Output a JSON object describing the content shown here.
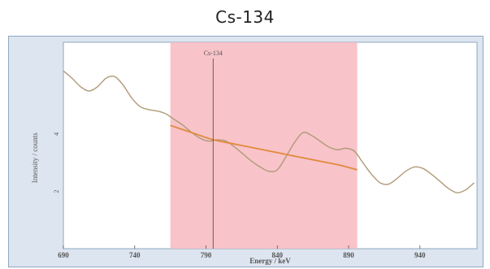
{
  "page": {
    "title": "Cs-134"
  },
  "colors": {
    "panel_background": "#dde5f0",
    "plot_background": "#ffffff",
    "frame": "#8fa8c2",
    "spectrum_line": "#b09a78",
    "background_line": "#e08a3c",
    "roi_fill": "#f7bcc3",
    "marker_line": "#555555",
    "axis_text": "#555555"
  },
  "chart_data": {
    "type": "line",
    "title": "",
    "xlabel": "Energy / keV",
    "ylabel": "Intensity / counts",
    "xlim": [
      690,
      980
    ],
    "ylim": [
      0,
      7.2
    ],
    "x_ticks": [
      690,
      740,
      790,
      840,
      890,
      940
    ],
    "y_ticks": [
      2,
      4
    ],
    "grid": false,
    "legend": "none",
    "series": [
      {
        "role": "spectrum",
        "x": [
          690,
          696,
          702,
          708,
          714,
          720,
          726,
          732,
          738,
          744,
          750,
          756,
          762,
          768,
          774,
          780,
          786,
          792,
          798,
          804,
          810,
          816,
          822,
          828,
          834,
          840,
          846,
          852,
          858,
          864,
          870,
          876,
          882,
          888,
          894,
          900,
          906,
          912,
          918,
          924,
          930,
          936,
          942,
          948,
          954,
          960,
          966,
          972,
          978
        ],
        "y": [
          6.2,
          5.95,
          5.65,
          5.5,
          5.65,
          5.95,
          6.0,
          5.7,
          5.25,
          4.95,
          4.85,
          4.8,
          4.7,
          4.5,
          4.3,
          4.05,
          3.85,
          3.75,
          3.8,
          3.75,
          3.55,
          3.3,
          3.05,
          2.85,
          2.7,
          2.75,
          3.2,
          3.7,
          4.05,
          3.95,
          3.75,
          3.55,
          3.45,
          3.5,
          3.4,
          3.0,
          2.6,
          2.3,
          2.25,
          2.45,
          2.7,
          2.85,
          2.8,
          2.6,
          2.35,
          2.1,
          1.95,
          2.05,
          2.3
        ]
      },
      {
        "role": "background",
        "x": [
          765,
          780,
          795,
          810,
          825,
          840,
          855,
          870,
          885,
          896
        ],
        "y": [
          4.3,
          4.05,
          3.8,
          3.65,
          3.5,
          3.35,
          3.2,
          3.05,
          2.9,
          2.75
        ]
      }
    ],
    "roi": {
      "x_start": 765,
      "x_end": 896
    },
    "marker": {
      "x": 795,
      "label": "Cs-134"
    }
  }
}
